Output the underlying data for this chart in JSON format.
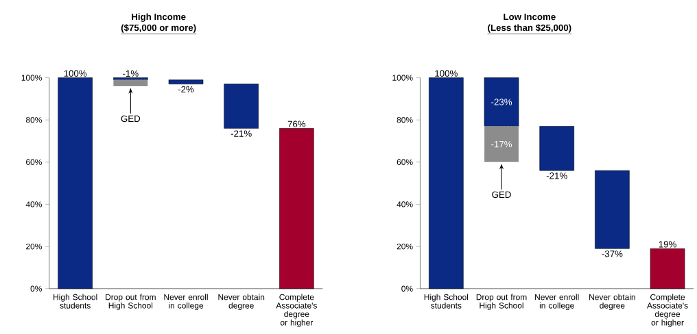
{
  "chart_data": [
    {
      "type": "bar",
      "title": "High Income",
      "subtitle": "($75,000 or more)",
      "categories": [
        "High School students",
        "Drop out from High School",
        "Never enroll in college",
        "Never obtain degree",
        "Complete Associate's degree or higher"
      ],
      "ylim": [
        0,
        100
      ],
      "yticks": [
        {
          "value": 0,
          "label": "0%"
        },
        {
          "value": 20,
          "label": "20%"
        },
        {
          "value": 40,
          "label": "40%"
        },
        {
          "value": 60,
          "label": "60%"
        },
        {
          "value": 80,
          "label": "80%"
        },
        {
          "value": 100,
          "label": "100%"
        }
      ],
      "annotations": [
        "GED"
      ],
      "series": [
        {
          "color": "#0b2a85",
          "colors": [
            "#0b2a85",
            "#0b2a85",
            "#0b2a85",
            "#0b2a85",
            "#a3002e"
          ],
          "base": [
            0,
            100,
            99,
            97,
            0
          ],
          "values": [
            100,
            -1,
            -2,
            -21,
            76
          ],
          "value_labels": [
            "100%",
            "-1%",
            "-2%",
            "-21%",
            "76%"
          ]
        },
        {
          "color": "#8c8c8c",
          "base": [
            null,
            99,
            null,
            null,
            null
          ],
          "values": [
            null,
            -3,
            null,
            null,
            null
          ]
        }
      ]
    },
    {
      "type": "bar",
      "title": "Low Income",
      "subtitle": "(Less than $25,000)",
      "categories": [
        "High School students",
        "Drop out from High School",
        "Never enroll in college",
        "Never obtain degree",
        "Complete Associate's degree or higher"
      ],
      "ylim": [
        0,
        100
      ],
      "yticks": [
        {
          "value": 0,
          "label": "0%"
        },
        {
          "value": 20,
          "label": "20%"
        },
        {
          "value": 40,
          "label": "40%"
        },
        {
          "value": 60,
          "label": "60%"
        },
        {
          "value": 80,
          "label": "80%"
        },
        {
          "value": 100,
          "label": "100%"
        }
      ],
      "annotations": [
        "GED"
      ],
      "series": [
        {
          "color": "#0b2a85",
          "colors": [
            "#0b2a85",
            "#0b2a85",
            "#0b2a85",
            "#0b2a85",
            "#a3002e"
          ],
          "base": [
            0,
            100,
            77,
            56,
            0
          ],
          "values": [
            100,
            -23,
            -21,
            -37,
            19
          ],
          "value_labels": [
            "100%",
            "-23%",
            "-21%",
            "-37%",
            "19%"
          ]
        },
        {
          "color": "#8c8c8c",
          "base": [
            null,
            77,
            null,
            null,
            null
          ],
          "values": [
            null,
            -17,
            null,
            null,
            null
          ],
          "value_labels": [
            null,
            "-17%",
            null,
            null,
            null
          ]
        }
      ]
    }
  ]
}
